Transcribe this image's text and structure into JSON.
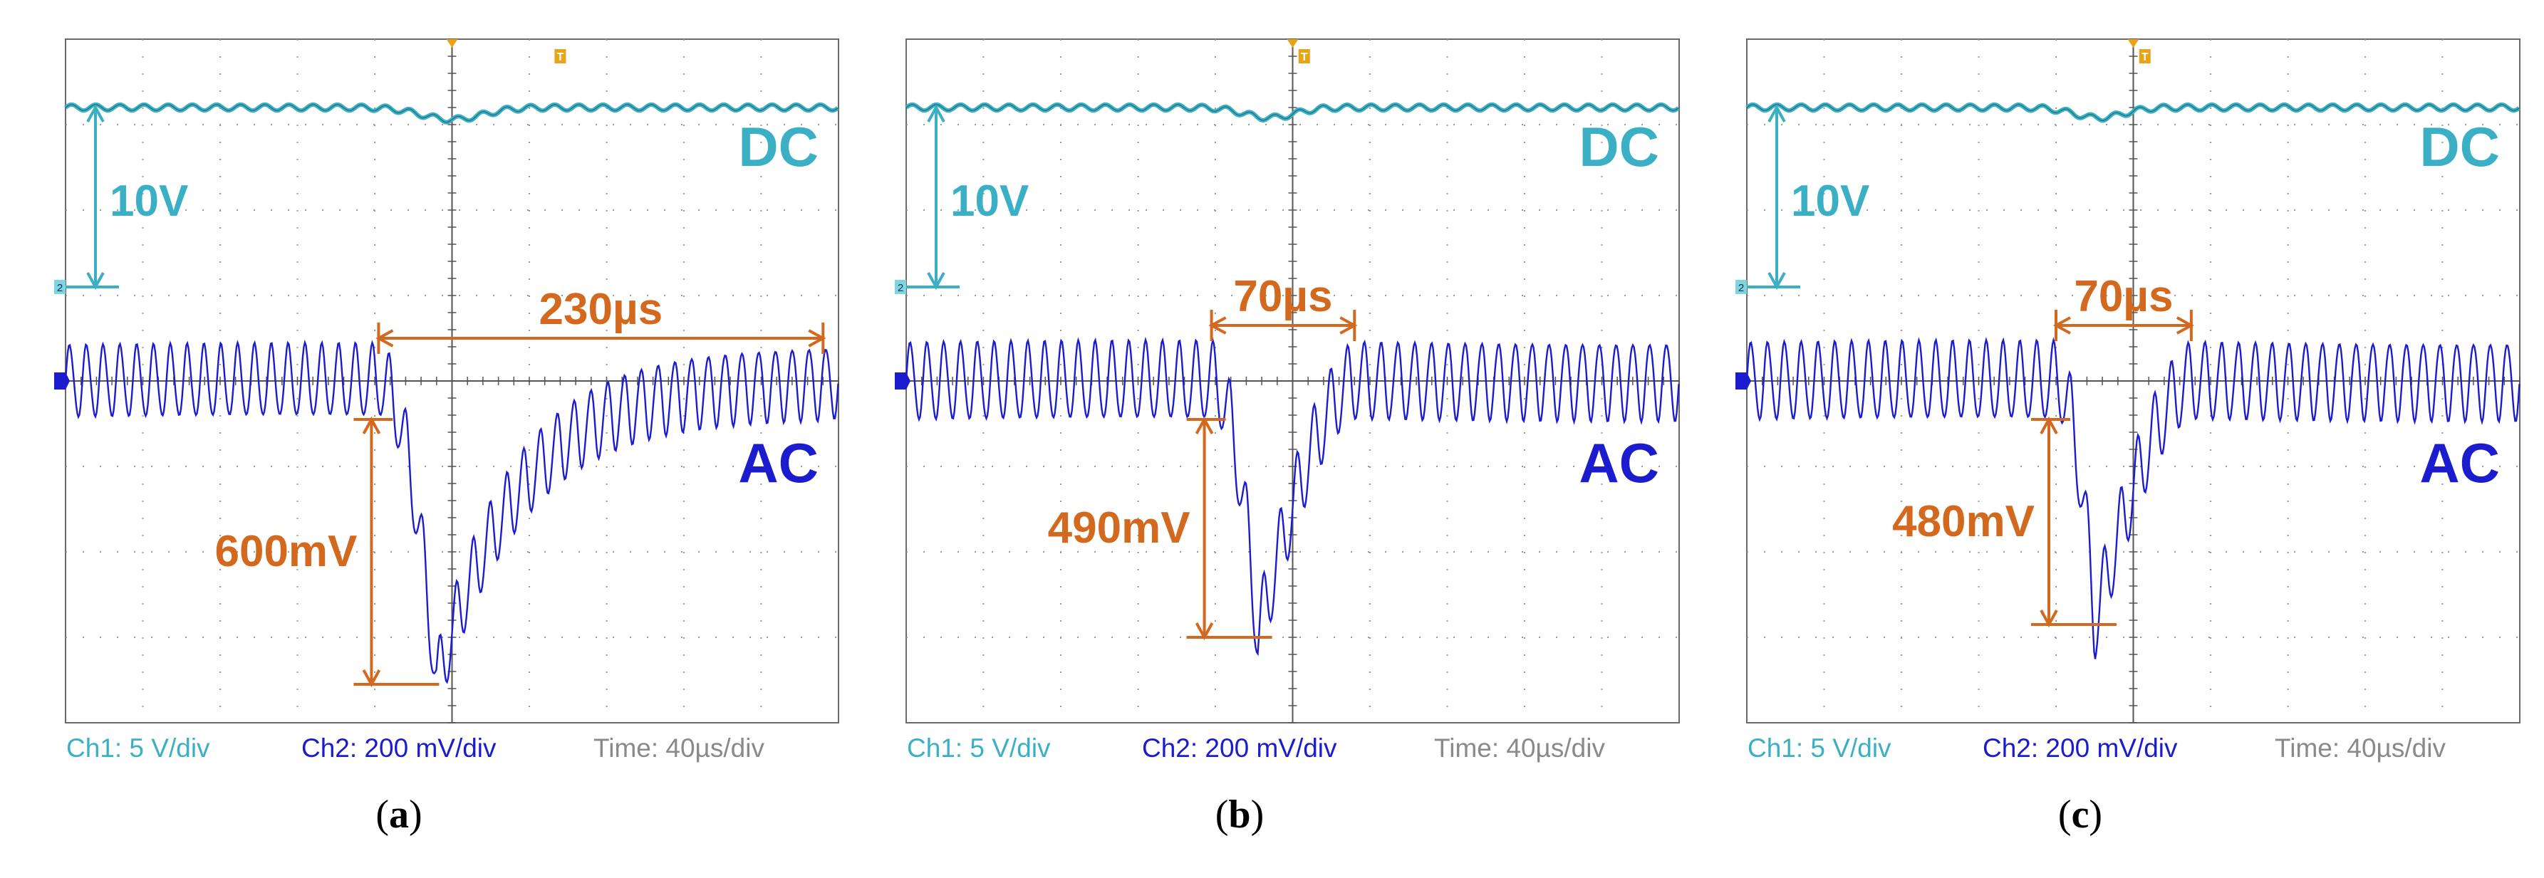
{
  "colors": {
    "dc": "#3bb0c4",
    "ac": "#1c1ccf",
    "annotation": "#d2691e",
    "time": "#8a8a8a",
    "grid": "#9a9a9a",
    "frame": "#6a6a6a"
  },
  "chart_data": [
    {
      "type": "line",
      "caption": "a",
      "channel_labels": {
        "dc": "DC",
        "ac": "AC"
      },
      "scale": {
        "ch1": "Ch1: 5 V/div",
        "ch2": "Ch2: 200 mV/div",
        "time": "Time: 40µs/div"
      },
      "annotations": {
        "dc_amplitude": "10V",
        "voltage_drop": "600mV",
        "recovery_time": "230µs"
      },
      "grid": {
        "x_divisions": 10,
        "y_divisions": 8
      },
      "ylim": [
        -4,
        4
      ],
      "series": [
        {
          "name": "DC",
          "level_div": 3.2,
          "dip_center_div": 5.0,
          "dip_depth_div": 0.14,
          "dip_halfwidth_div": 0.55
        },
        {
          "name": "AC",
          "baseline_div": 0,
          "ripple_div": 0.42,
          "cycles_per_div": 4.6,
          "drop_start_div": 4.05,
          "drop_peak_div": 4.8,
          "drop_min_div": -3.55,
          "recovery_end_div": 9.9,
          "recovery_shape": "slow"
        }
      ],
      "markers": {
        "voltage_top_div": -0.45,
        "voltage_bottom_div": -3.55,
        "time_start_div": 4.05,
        "time_end_div": 9.8,
        "time_y_div": 0.5
      }
    },
    {
      "type": "line",
      "caption": "b",
      "channel_labels": {
        "dc": "DC",
        "ac": "AC"
      },
      "scale": {
        "ch1": "Ch1: 5 V/div",
        "ch2": "Ch2: 200 mV/div",
        "time": "Time: 40µs/div"
      },
      "annotations": {
        "dc_amplitude": "10V",
        "voltage_drop": "490mV",
        "recovery_time": "70µs"
      },
      "grid": {
        "x_divisions": 10,
        "y_divisions": 8
      },
      "ylim": [
        -4,
        4
      ],
      "series": [
        {
          "name": "DC",
          "level_div": 3.2,
          "dip_center_div": 4.7,
          "dip_depth_div": 0.12,
          "dip_halfwidth_div": 0.45
        },
        {
          "name": "AC",
          "baseline_div": 0,
          "ripple_div": 0.45,
          "cycles_per_div": 4.6,
          "drop_start_div": 3.95,
          "drop_peak_div": 4.55,
          "drop_min_div": -3.0,
          "recovery_end_div": 5.8,
          "recovery_shape": "fast"
        }
      ],
      "markers": {
        "voltage_top_div": -0.45,
        "voltage_bottom_div": -3.0,
        "time_start_div": 3.95,
        "time_end_div": 5.8,
        "time_y_div": 0.65
      }
    },
    {
      "type": "line",
      "caption": "c",
      "channel_labels": {
        "dc": "DC",
        "ac": "AC"
      },
      "scale": {
        "ch1": "Ch1: 5 V/div",
        "ch2": "Ch2: 200 mV/div",
        "time": "Time: 40µs/div"
      },
      "annotations": {
        "dc_amplitude": "10V",
        "voltage_drop": "480mV",
        "recovery_time": "70µs"
      },
      "grid": {
        "x_divisions": 10,
        "y_divisions": 8
      },
      "ylim": [
        -4,
        4
      ],
      "series": [
        {
          "name": "DC",
          "level_div": 3.2,
          "dip_center_div": 4.55,
          "dip_depth_div": 0.12,
          "dip_halfwidth_div": 0.45
        },
        {
          "name": "AC",
          "baseline_div": 0,
          "ripple_div": 0.45,
          "cycles_per_div": 4.6,
          "drop_start_div": 4.0,
          "drop_peak_div": 4.5,
          "drop_min_div": -2.85,
          "recovery_end_div": 5.75,
          "recovery_shape": "fast"
        }
      ],
      "markers": {
        "voltage_top_div": -0.45,
        "voltage_bottom_div": -2.85,
        "time_start_div": 4.0,
        "time_end_div": 5.75,
        "time_y_div": 0.65
      }
    }
  ]
}
